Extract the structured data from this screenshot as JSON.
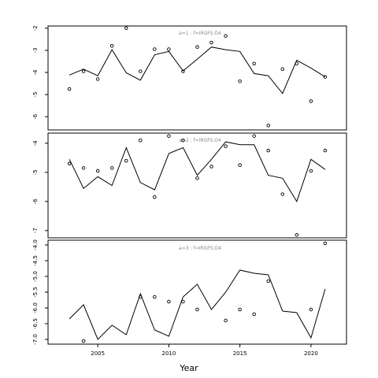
{
  "chart_data": {
    "type": "line",
    "xlabel": "Year",
    "x_ticks": [
      2005,
      2010,
      2015,
      2020
    ],
    "xlim": [
      2001.5,
      2022.5
    ],
    "grid": false,
    "panels": [
      {
        "label": "a=1  :  f=IRGFS.O4",
        "ylim": [
          -6.6,
          -1.9
        ],
        "y_ticks": [
          -2,
          -3,
          -4,
          -5,
          -6
        ],
        "line": {
          "x": [
            2003,
            2004,
            2005,
            2006,
            2007,
            2008,
            2009,
            2010,
            2011,
            2012,
            2013,
            2014,
            2015,
            2016,
            2017,
            2018,
            2019,
            2020,
            2021
          ],
          "y": [
            -4.12,
            -3.85,
            -4.15,
            -2.97,
            -4.02,
            -4.35,
            -3.2,
            -3.05,
            -3.93,
            -3.4,
            -2.85,
            -2.97,
            -3.05,
            -4.05,
            -4.15,
            -4.95,
            -3.45,
            -3.8,
            -4.2
          ]
        },
        "points": {
          "x": [
            2003,
            2004,
            2005,
            2006,
            2007,
            2008,
            2009,
            2010,
            2011,
            2012,
            2013,
            2014,
            2015,
            2016,
            2017,
            2018,
            2019,
            2020,
            2021
          ],
          "y": [
            -4.75,
            -3.95,
            -4.3,
            -2.8,
            -2.0,
            -3.95,
            -2.95,
            -2.95,
            -3.95,
            -2.85,
            -2.65,
            -2.35,
            -4.4,
            -3.6,
            -6.4,
            -3.85,
            -3.6,
            -5.3,
            -4.2
          ]
        }
      },
      {
        "label": "a=2  :  f=IRGFS.O4",
        "ylim": [
          -7.25,
          -3.65
        ],
        "y_ticks": [
          -4.0,
          -5.0,
          -6.0,
          -7.0
        ],
        "line": {
          "x": [
            2003,
            2004,
            2005,
            2006,
            2007,
            2008,
            2009,
            2010,
            2011,
            2012,
            2013,
            2014,
            2015,
            2016,
            2017,
            2018,
            2019,
            2020,
            2021
          ],
          "y": [
            -4.55,
            -5.55,
            -5.15,
            -5.45,
            -4.15,
            -5.35,
            -5.6,
            -4.35,
            -4.15,
            -5.1,
            -4.55,
            -3.95,
            -4.05,
            -4.05,
            -5.1,
            -5.2,
            -6.0,
            -4.55,
            -4.9
          ]
        },
        "points": {
          "x": [
            2003,
            2004,
            2005,
            2006,
            2007,
            2008,
            2009,
            2010,
            2011,
            2012,
            2013,
            2014,
            2015,
            2016,
            2017,
            2018,
            2019,
            2020,
            2021
          ],
          "y": [
            -4.7,
            -4.85,
            -4.95,
            -4.85,
            -4.6,
            -3.9,
            -5.85,
            -3.75,
            -3.9,
            -5.2,
            -4.8,
            -4.1,
            -4.75,
            -3.75,
            -4.25,
            -5.75,
            -7.15,
            -4.95,
            -4.25
          ]
        }
      },
      {
        "label": "a=3  :  f=IRGFS.O4",
        "ylim": [
          -7.15,
          -3.85
        ],
        "y_ticks": [
          -4.0,
          -4.5,
          -5.0,
          -5.5,
          -6.0,
          -6.5,
          -7.0
        ],
        "line": {
          "x": [
            2003,
            2004,
            2005,
            2006,
            2007,
            2008,
            2009,
            2010,
            2011,
            2012,
            2013,
            2014,
            2015,
            2016,
            2017,
            2018,
            2019,
            2020,
            2021
          ],
          "y": [
            -6.35,
            -5.9,
            -7.0,
            -6.55,
            -6.85,
            -5.55,
            -6.7,
            -6.9,
            -5.65,
            -5.25,
            -6.05,
            -5.5,
            -4.8,
            -4.9,
            -4.95,
            -6.1,
            -6.15,
            -6.95,
            -5.4
          ]
        },
        "points": {
          "x": [
            2003,
            2004,
            2005,
            2006,
            2007,
            2008,
            2009,
            2010,
            2011,
            2012,
            2013,
            2014,
            2015,
            2016,
            2017,
            2018,
            2019,
            2020,
            2021
          ],
          "y": [
            null,
            -7.05,
            null,
            null,
            null,
            -5.65,
            -5.65,
            -5.8,
            -5.8,
            -6.05,
            null,
            -6.4,
            -6.05,
            -6.2,
            -5.15,
            null,
            null,
            -6.05,
            -3.95
          ]
        }
      }
    ]
  }
}
